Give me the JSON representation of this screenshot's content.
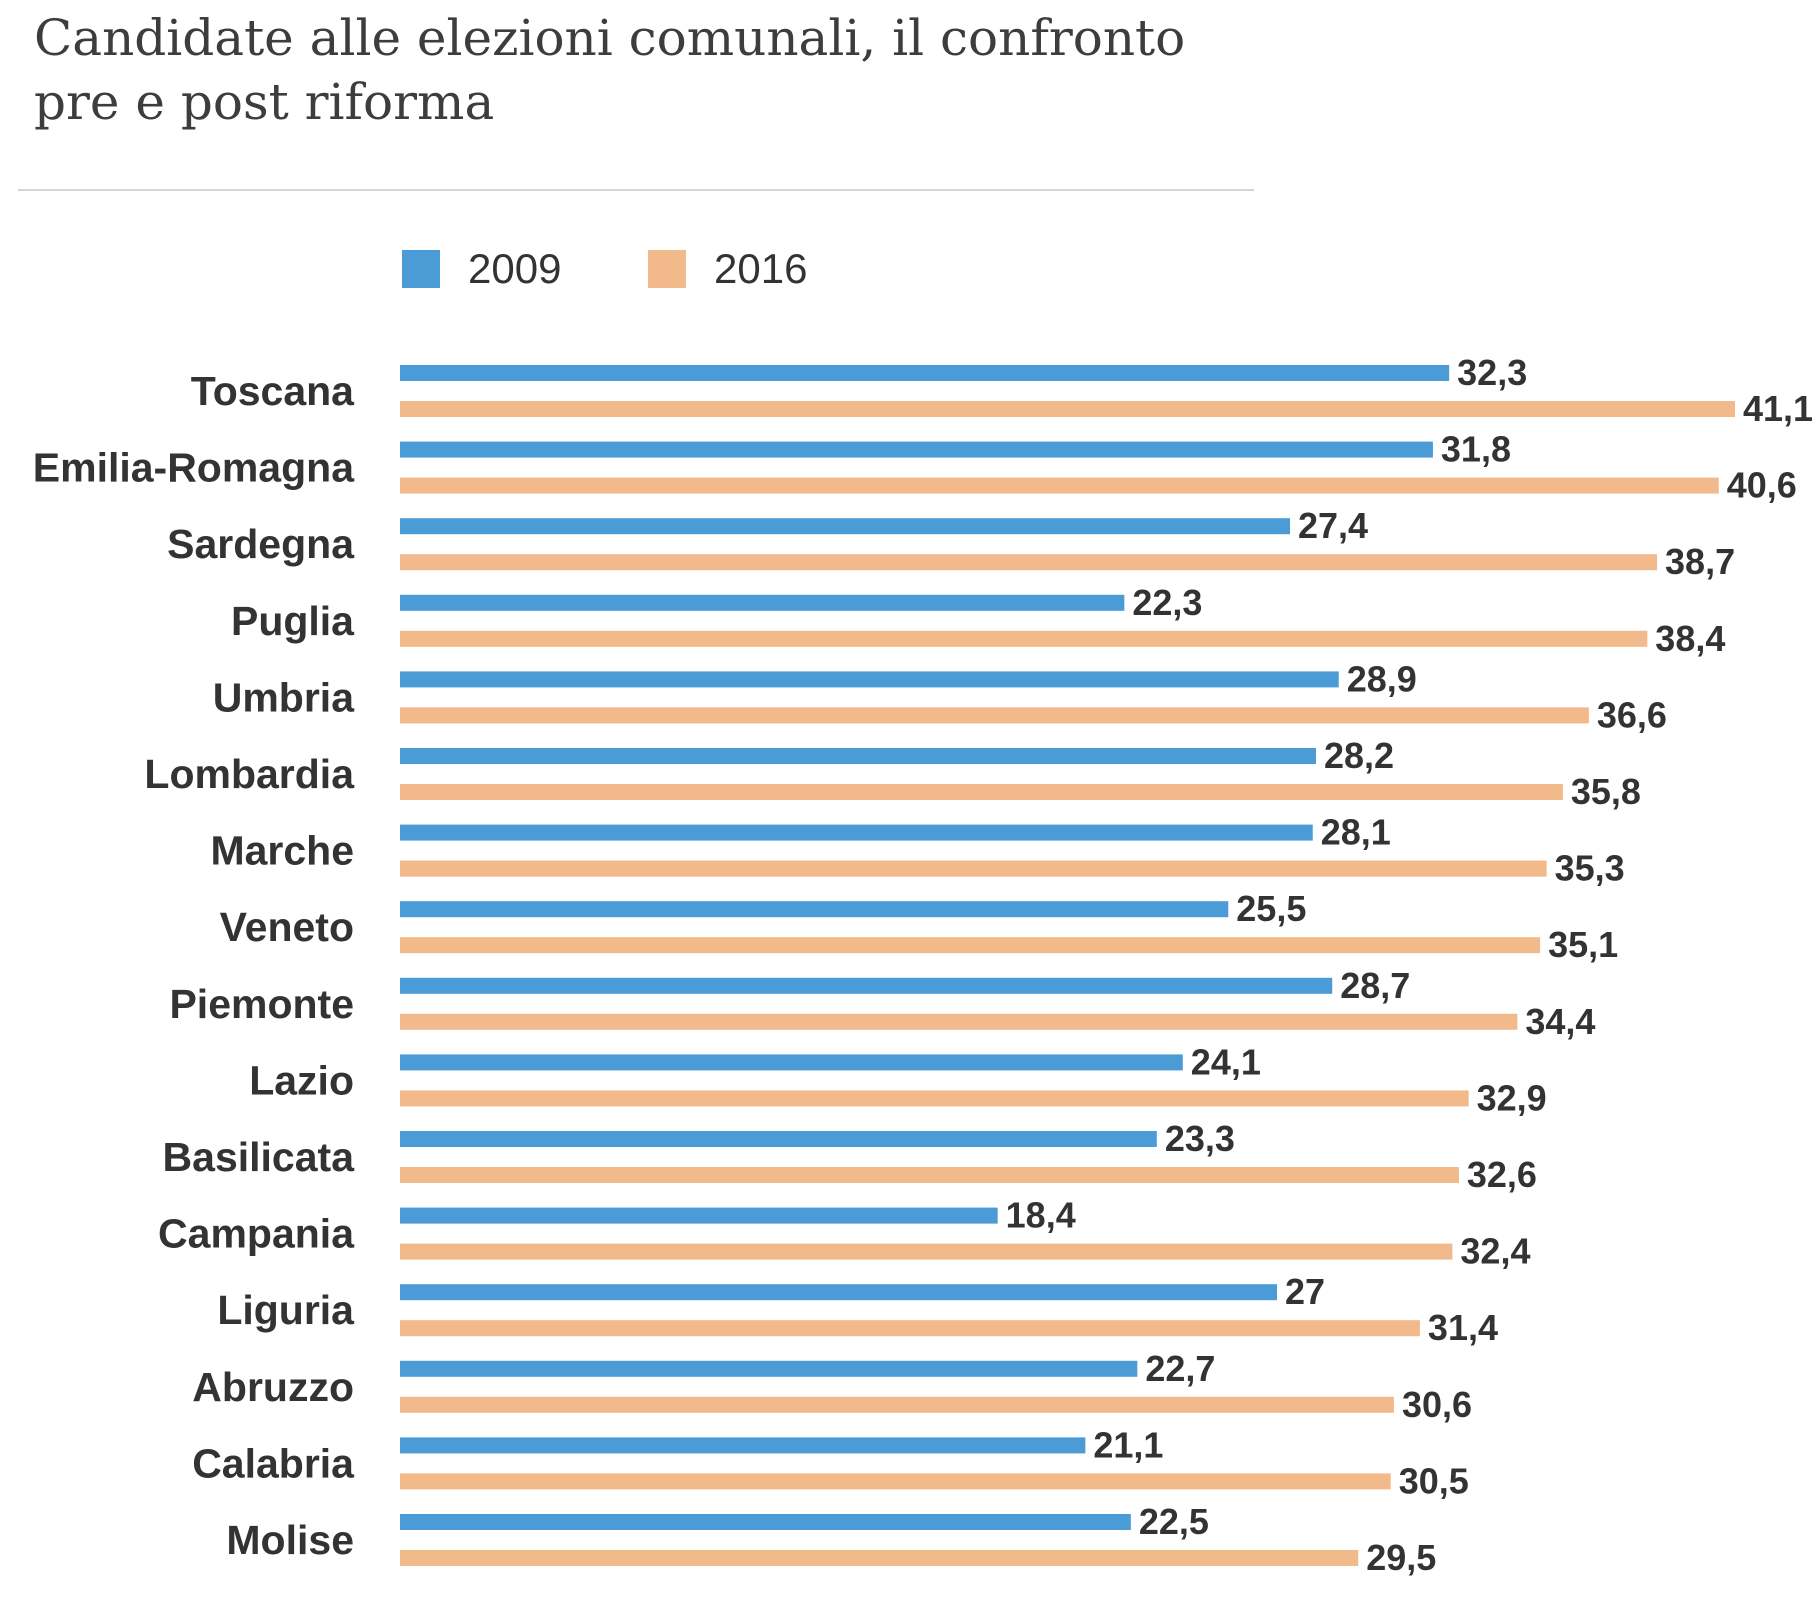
{
  "title": "Candidate alle elezioni comunali, il confronto pre e post riforma",
  "chart_data": {
    "type": "bar",
    "orientation": "horizontal",
    "title": "Candidate alle elezioni comunali, il confronto pre e post riforma",
    "xlabel": "",
    "ylabel": "",
    "xlim": [
      0,
      41.1
    ],
    "grid": false,
    "legend_position": "top-left",
    "categories": [
      "Toscana",
      "Emilia-Romagna",
      "Sardegna",
      "Puglia",
      "Umbria",
      "Lombardia",
      "Marche",
      "Veneto",
      "Piemonte",
      "Lazio",
      "Basilicata",
      "Campania",
      "Liguria",
      "Abruzzo",
      "Calabria",
      "Molise"
    ],
    "series": [
      {
        "name": "2009",
        "color": "#4a9bd6",
        "values": [
          32.3,
          31.8,
          27.4,
          22.3,
          28.9,
          28.2,
          28.1,
          25.5,
          28.7,
          24.1,
          23.3,
          18.4,
          27,
          22.7,
          21.1,
          22.5
        ],
        "labels": [
          "32,3",
          "31,8",
          "27,4",
          "22,3",
          "28,9",
          "28,2",
          "28,1",
          "25,5",
          "28,7",
          "24,1",
          "23,3",
          "18,4",
          "27",
          "22,7",
          "21,1",
          "22,5"
        ]
      },
      {
        "name": "2016",
        "color": "#f2b98a",
        "values": [
          41.1,
          40.6,
          38.7,
          38.4,
          36.6,
          35.8,
          35.3,
          35.1,
          34.4,
          32.9,
          32.6,
          32.4,
          31.4,
          30.6,
          30.5,
          29.5
        ],
        "labels": [
          "41,1",
          "40,6",
          "38,7",
          "38,4",
          "36,6",
          "35,8",
          "35,3",
          "35,1",
          "34,4",
          "32,9",
          "32,6",
          "32,4",
          "31,4",
          "30,6",
          "30,5",
          "29,5"
        ]
      }
    ]
  }
}
